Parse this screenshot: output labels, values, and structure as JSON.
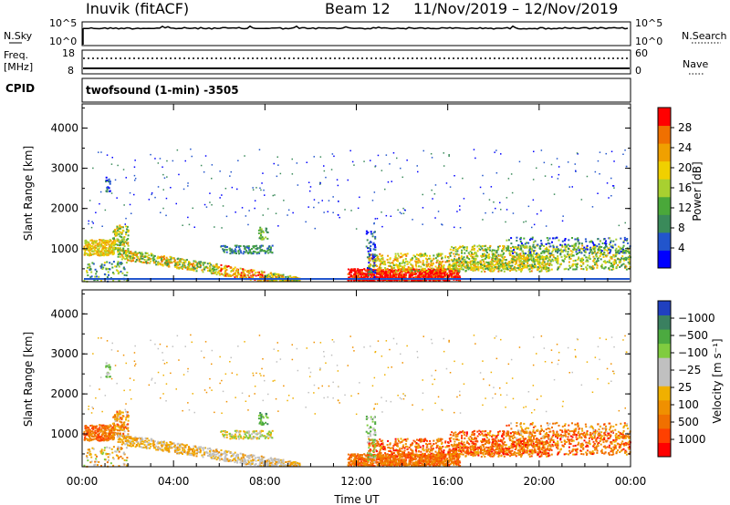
{
  "header": {
    "station": "Inuvik (fitACF)",
    "beam": "Beam 12",
    "daterange": "11/Nov/2019 – 12/Nov/2019"
  },
  "status": {
    "nsky_label": "N.Sky",
    "nsky_top": "10^5",
    "nsky_bot": "10^0",
    "nsearch_label": "N.Search",
    "nsearch_top": "10^5",
    "nsearch_bot": "10^0",
    "freq_label": "Freq.",
    "freq_unit": "[MHz]",
    "freq_top": "18",
    "freq_bot": "8",
    "nave_label": "Nave",
    "nave_top": "60",
    "nave_bot": "0",
    "cpid_label": "CPID",
    "cpid_value": "twofsound (1-min) -3505"
  },
  "chart_data": [
    {
      "type": "heatmap",
      "name": "power",
      "ylabel": "Slant Range [km]",
      "yticks": [
        "1000",
        "2000",
        "3000",
        "4000"
      ],
      "ylim": [
        180,
        4600
      ],
      "xlim_hours": [
        0,
        24
      ],
      "colorbar_label": "Power [dB]",
      "colorbar_ticks": [
        "4",
        "8",
        "12",
        "16",
        "20",
        "24",
        "28"
      ],
      "colors": [
        "#0000ff",
        "#2255cc",
        "#3a8a5a",
        "#4aa83a",
        "#a8d030",
        "#f0d000",
        "#f0a000",
        "#f07000",
        "#ff0000"
      ]
    },
    {
      "type": "heatmap",
      "name": "velocity",
      "ylabel": "Slant Range [km]",
      "yticks": [
        "1000",
        "2000",
        "3000",
        "4000"
      ],
      "ylim": [
        180,
        4600
      ],
      "xlim_hours": [
        0,
        24
      ],
      "colorbar_label": "Velocity [m s⁻¹]",
      "colorbar_ticks": [
        "1000",
        "500",
        "100",
        "25",
        "−25",
        "−100",
        "−500",
        "−1000"
      ],
      "colors": [
        "#2040c0",
        "#3a8060",
        "#4caa40",
        "#80cc40",
        "#c0c0c0",
        "#c0c0c0",
        "#f0b000",
        "#f09000",
        "#f07000",
        "#ff4000",
        "#ff0000"
      ]
    }
  ],
  "xaxis": {
    "ticks": [
      "00:00",
      "04:00",
      "08:00",
      "12:00",
      "16:00",
      "20:00",
      "00:00"
    ],
    "label": "Time UT"
  }
}
